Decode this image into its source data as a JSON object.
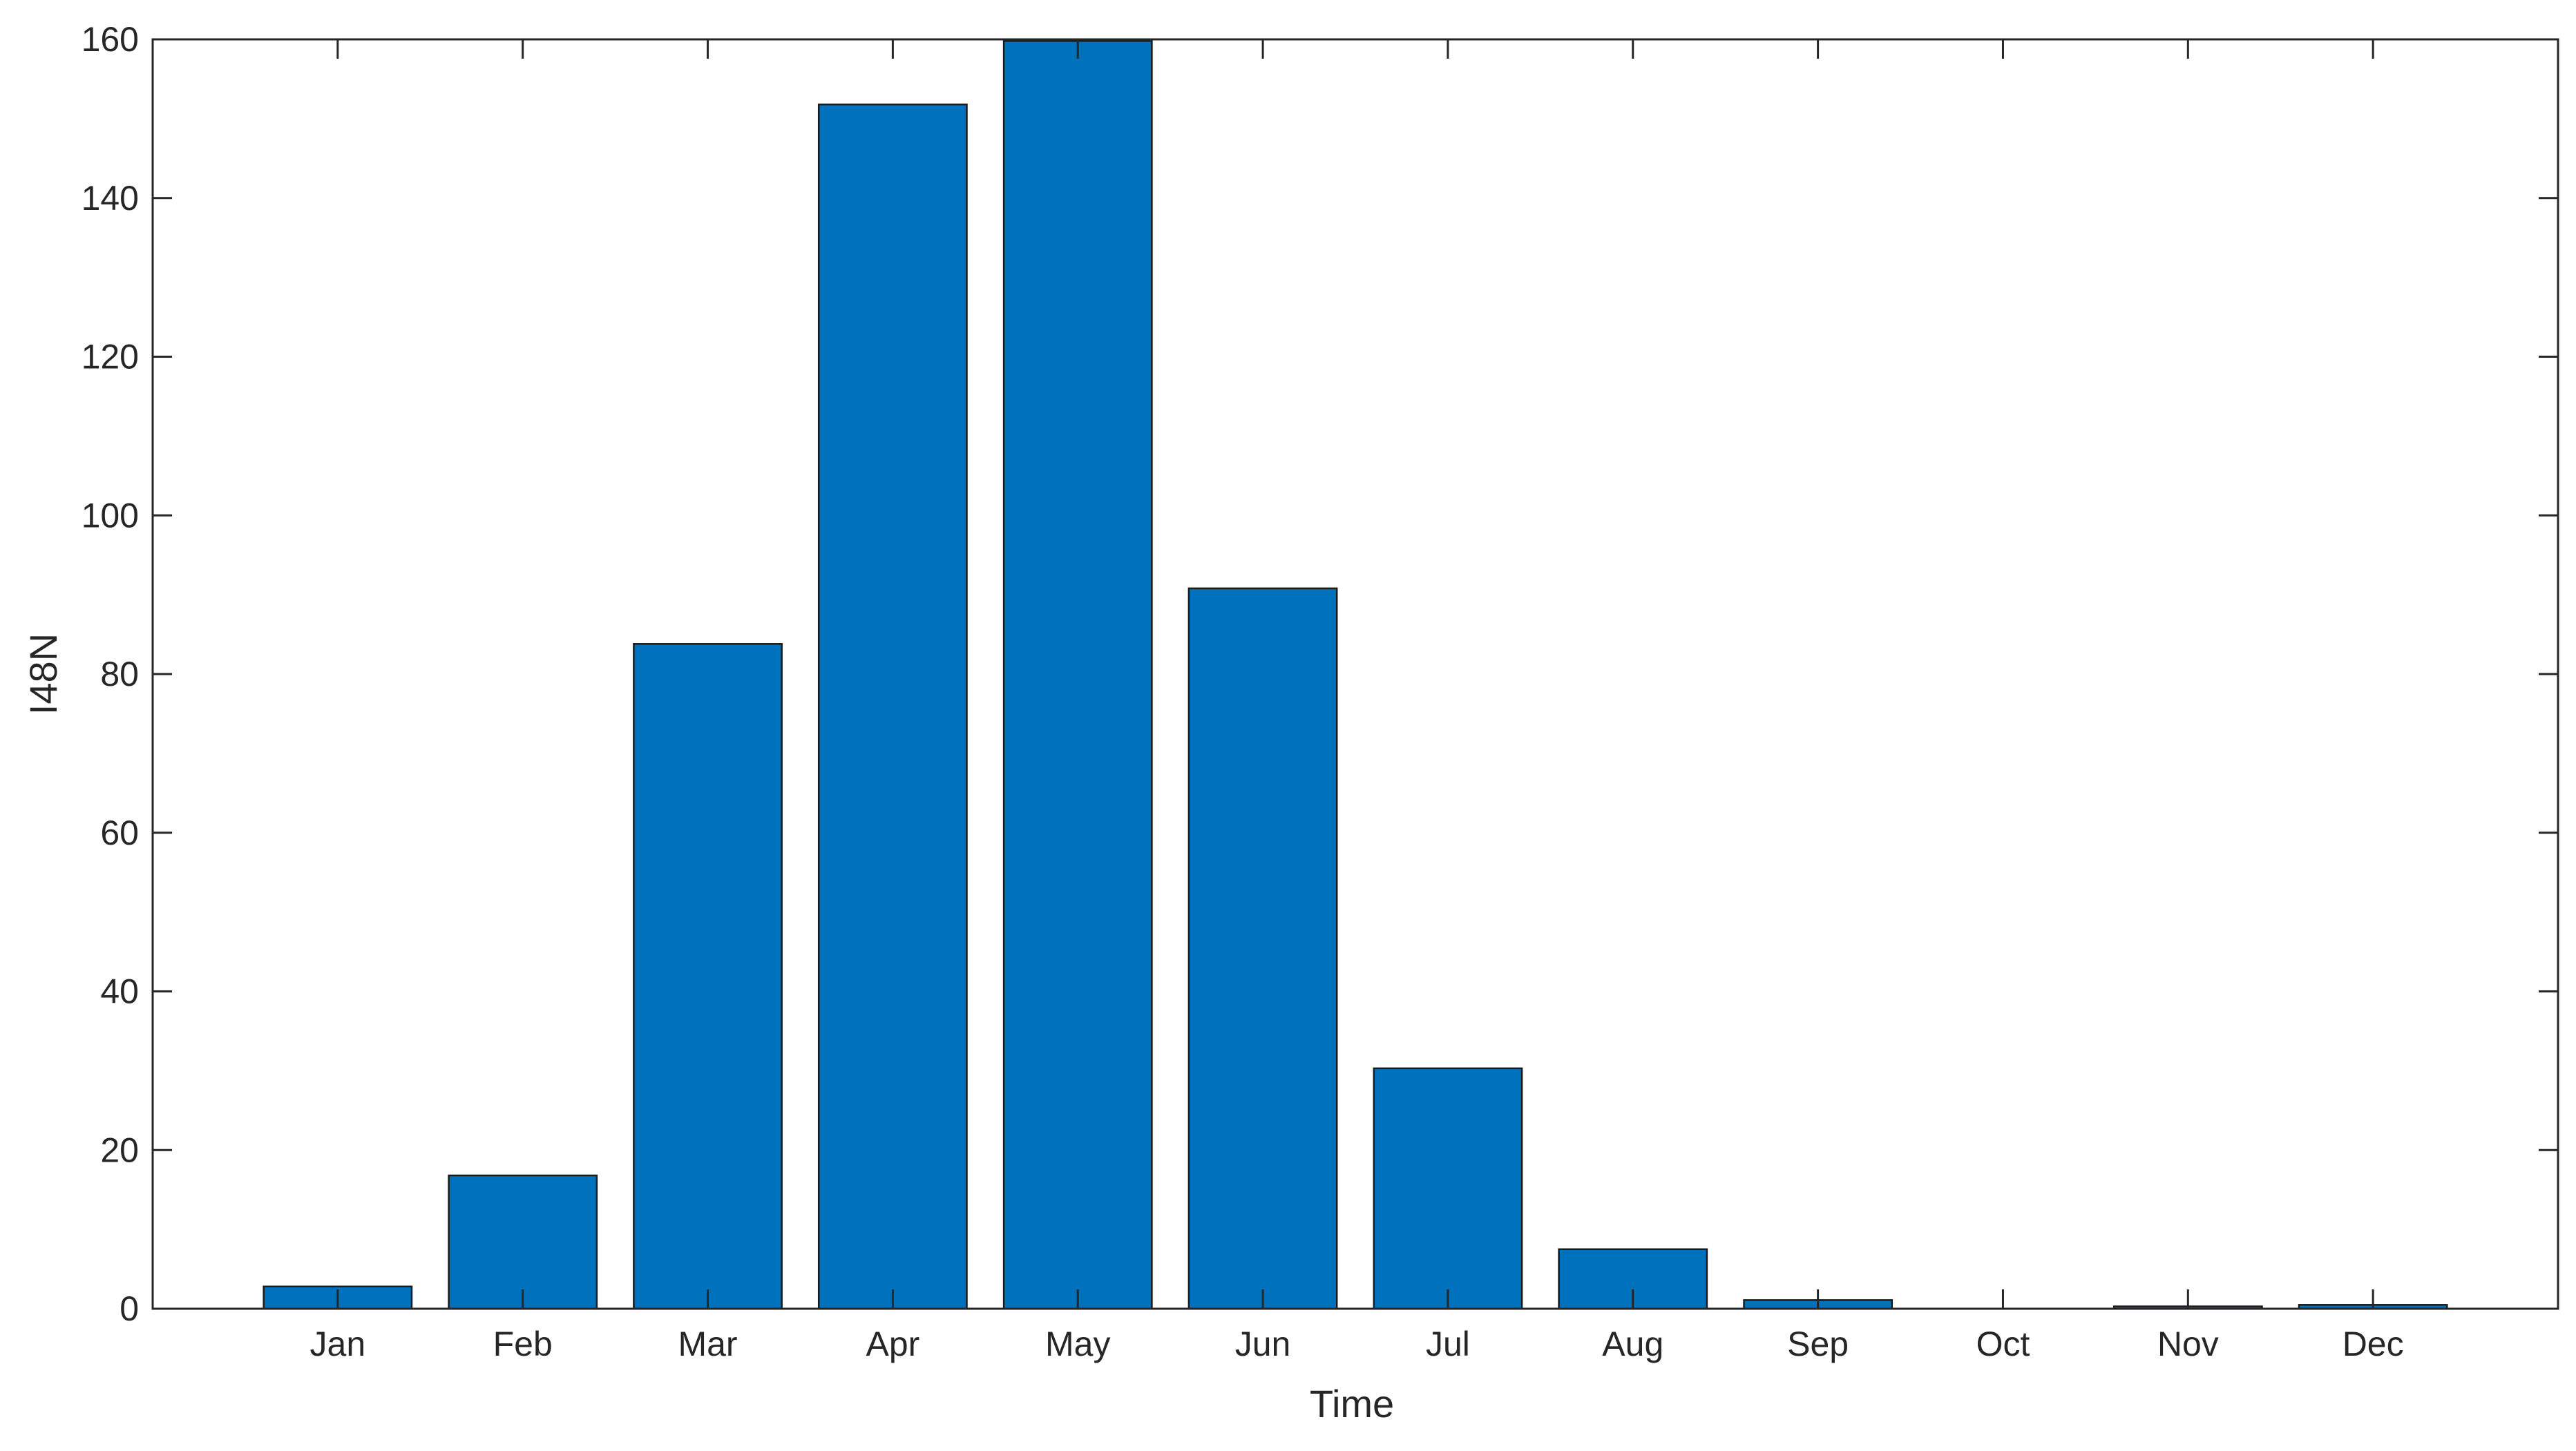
{
  "chart_data": {
    "type": "bar",
    "title": "",
    "xlabel": "Time",
    "ylabel": "I48N",
    "categories": [
      "Jan",
      "Feb",
      "Mar",
      "Apr",
      "May",
      "Jun",
      "Jul",
      "Aug",
      "Sep",
      "Oct",
      "Nov",
      "Dec"
    ],
    "series": [
      {
        "values": [
          2.8,
          16.8,
          83.8,
          151.8,
          159.8,
          90.8,
          30.3,
          7.5,
          1.1,
          0,
          0.3,
          0.5
        ]
      }
    ],
    "ylim": [
      0,
      160
    ],
    "yticks": [
      0,
      20,
      40,
      60,
      80,
      100,
      120,
      140,
      160
    ],
    "grid": false,
    "legend": "none",
    "colors": {
      "bar_fill": "#0072BD",
      "bar_edge": "#1a1a1a",
      "axis": "#262626",
      "background": "#ffffff"
    }
  }
}
